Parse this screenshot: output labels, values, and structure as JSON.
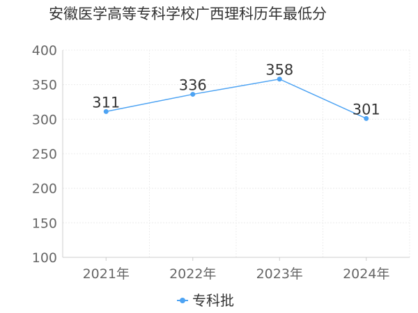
{
  "chart_data": {
    "type": "line",
    "title": "安徽医学高等专科学校广西理科历年最低分",
    "categories": [
      "2021年",
      "2022年",
      "2023年",
      "2024年"
    ],
    "series": [
      {
        "name": "专科批",
        "values": [
          311,
          336,
          358,
          301
        ],
        "color": "#4da3f3"
      }
    ],
    "ylim": [
      100,
      400
    ],
    "yticks": [
      100,
      150,
      200,
      250,
      300,
      350,
      400
    ],
    "xlabel": "",
    "ylabel": "",
    "grid": true,
    "legend": "bottom-center"
  }
}
